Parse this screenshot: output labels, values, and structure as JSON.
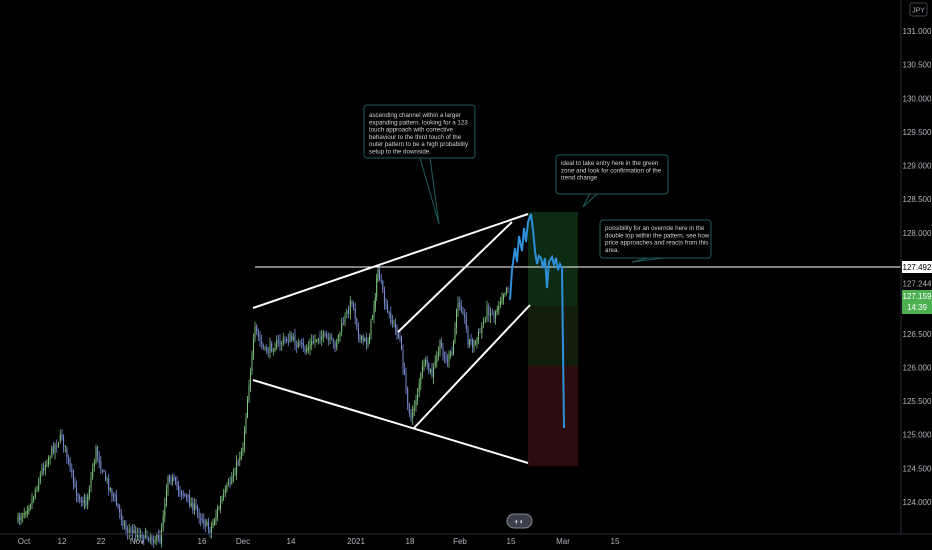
{
  "chart_data": {
    "type": "candlestick",
    "currency_badge": "JPY",
    "colors": {
      "background": "#000000",
      "candle": "#7b8fd6",
      "candle_up": "#7ec47e",
      "drawing": "#ffffff",
      "projection": "#2f8fd8",
      "callout_border": "#1f5b5b",
      "price_label": "#4caf50",
      "target_zone": "#0d2b12",
      "stop_zone": "#2b0d0d"
    },
    "x_ticks": [
      "Oct",
      "12",
      "22",
      "Nov",
      "16",
      "Dec",
      "14",
      "2021",
      "18",
      "Feb",
      "15",
      "Mar",
      "15"
    ],
    "y_ticks": [
      "131.000",
      "130.500",
      "130.000",
      "129.500",
      "129.000",
      "128.500",
      "128.000",
      "127.244",
      "126.500",
      "126.000",
      "125.500",
      "125.000",
      "124.500",
      "124.000"
    ],
    "ylim": [
      123.8,
      131.2
    ],
    "price_labels": {
      "horizontal_level": "127.492",
      "current_price": "127.159",
      "countdown": "14:39"
    },
    "annotations": [
      {
        "id": "ascending-channel-note",
        "text": "ascending channel within a larger expanding pattern. looking for a 123 touch approach with corrective behaviour to the third touch of the outer pattern to be a high probability setup to the downside."
      },
      {
        "id": "entry-note",
        "text": "ideal to take entry here in the green zone and look for confirmation of the trend change"
      },
      {
        "id": "override-note",
        "text": "possibility for an override here in the double top within the pattern, see how price approaches and reacts from this area."
      }
    ]
  }
}
